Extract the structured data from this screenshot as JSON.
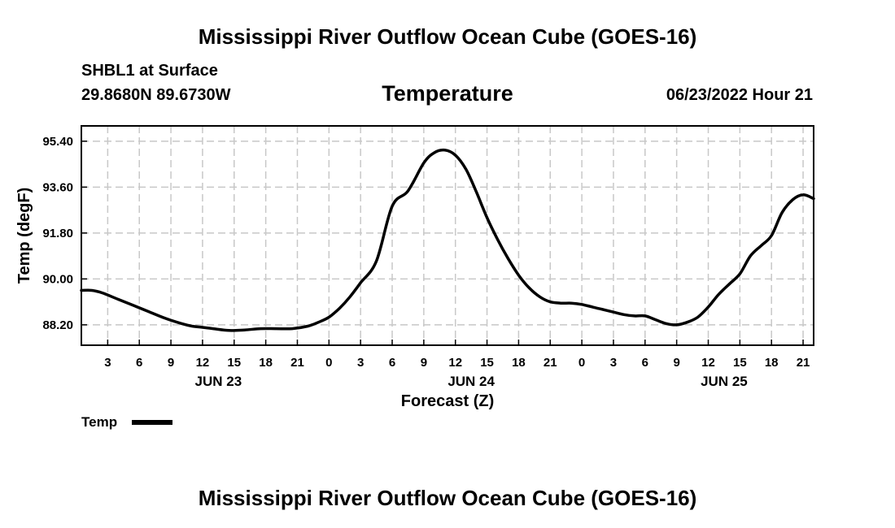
{
  "header": {
    "title": "Mississippi River Outflow Ocean Cube (GOES-16)",
    "station": "SHBL1 at Surface",
    "coords": "29.8680N  89.6730W",
    "subtitle": "Temperature",
    "datetime": "06/23/2022 Hour 21"
  },
  "footer": {
    "title": "Mississippi River Outflow Ocean Cube (GOES-16)"
  },
  "chart_data": {
    "type": "line",
    "title": "Temperature",
    "xlabel": "Forecast (Z)",
    "ylabel": "Temp (degF)",
    "x_unit": "hours from JUN 23 00Z",
    "xlim": [
      0.5,
      70
    ],
    "ylim": [
      87.4,
      96.0
    ],
    "yticks": [
      88.2,
      90.0,
      91.8,
      93.6,
      95.4
    ],
    "ytick_labels": [
      "88.20",
      "90.00",
      "91.80",
      "93.60",
      "95.40"
    ],
    "xticks": [
      3,
      6,
      9,
      12,
      15,
      18,
      21,
      24,
      27,
      30,
      33,
      36,
      39,
      42,
      45,
      48,
      51,
      54,
      57,
      60,
      63,
      66,
      69
    ],
    "xtick_labels": [
      "3",
      "6",
      "9",
      "12",
      "15",
      "18",
      "21",
      "0",
      "3",
      "6",
      "9",
      "12",
      "15",
      "18",
      "21",
      "0",
      "3",
      "6",
      "9",
      "12",
      "15",
      "18",
      "21"
    ],
    "day_labels": [
      {
        "label": "JUN 23",
        "x": 13.5
      },
      {
        "label": "JUN 24",
        "x": 37.5
      },
      {
        "label": "JUN 25",
        "x": 61.5
      }
    ],
    "grid": true,
    "series": [
      {
        "name": "Temp",
        "color": "#000000",
        "x": [
          0.5,
          1.5,
          2.5,
          4,
          5.5,
          7,
          8.5,
          10,
          11,
          12,
          13,
          14.5,
          16,
          17.5,
          19,
          20.5,
          22,
          23,
          24,
          25,
          26,
          27,
          28.5,
          30,
          31.5,
          33,
          34,
          35,
          36,
          37,
          38,
          39,
          40,
          41,
          42,
          43,
          44,
          45,
          46,
          47,
          48,
          49,
          50,
          51,
          52,
          53,
          54,
          55,
          56,
          57,
          58,
          59,
          60,
          61,
          62,
          63,
          64,
          65,
          66,
          67,
          68,
          69,
          70
        ],
        "values": [
          89.55,
          89.55,
          89.45,
          89.2,
          88.95,
          88.7,
          88.45,
          88.25,
          88.15,
          88.1,
          88.05,
          87.98,
          88.0,
          88.05,
          88.05,
          88.05,
          88.15,
          88.3,
          88.5,
          88.85,
          89.3,
          89.85,
          90.7,
          92.85,
          93.45,
          94.55,
          94.95,
          95.05,
          94.85,
          94.3,
          93.4,
          92.4,
          91.55,
          90.8,
          90.15,
          89.65,
          89.3,
          89.1,
          89.05,
          89.05,
          89.0,
          88.9,
          88.8,
          88.7,
          88.6,
          88.55,
          88.55,
          88.4,
          88.25,
          88.2,
          88.3,
          88.5,
          88.9,
          89.4,
          89.8,
          90.2,
          90.9,
          91.3,
          91.7,
          92.6,
          93.1,
          93.3,
          93.15
        ]
      }
    ],
    "legend": {
      "label": "Temp",
      "placement": "bottom-left"
    }
  }
}
